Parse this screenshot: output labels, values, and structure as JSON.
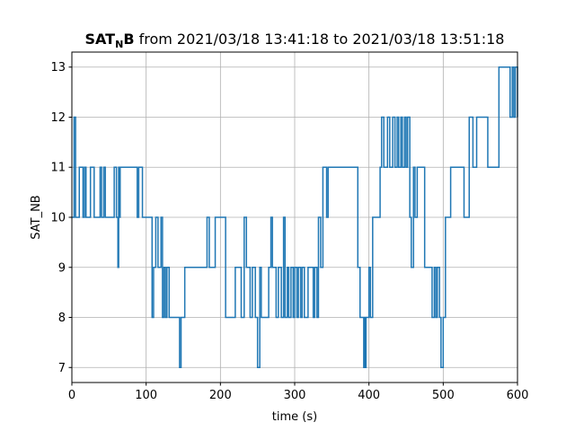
{
  "chart_data": {
    "type": "line",
    "step": true,
    "title": {
      "main": "SAT",
      "subscript": "N",
      "main_suffix": "B",
      "rest": " from 2021/03/18 13:41:18 to 2021/03/18 13:51:18"
    },
    "xlabel": "time (s)",
    "ylabel": "SAT_NB",
    "xlim": [
      0,
      600
    ],
    "ylim": [
      6.7,
      13.3
    ],
    "xticks": [
      0,
      100,
      200,
      300,
      400,
      500,
      600
    ],
    "yticks": [
      7,
      8,
      9,
      10,
      11,
      12,
      13
    ],
    "grid": true,
    "line_color": "#1f77b4",
    "series": [
      {
        "x": [
          0,
          3,
          5,
          10,
          15,
          17,
          19,
          22,
          25,
          30,
          35,
          38,
          40,
          43,
          45,
          48,
          57,
          60,
          62,
          63,
          64,
          65,
          66,
          70,
          88,
          90,
          95,
          98,
          108,
          110,
          113,
          115,
          116,
          120,
          122,
          124,
          126,
          128,
          131,
          134,
          135,
          137,
          145,
          147,
          152,
          178,
          182,
          185,
          193,
          207,
          210,
          220,
          228,
          232,
          235,
          240,
          243,
          247,
          250,
          253,
          255,
          265,
          268,
          270,
          273,
          275,
          278,
          282,
          285,
          287,
          290,
          292,
          295,
          298,
          300,
          303,
          305,
          308,
          310,
          313,
          315,
          318,
          320,
          322,
          325,
          327,
          330,
          332,
          335,
          338,
          343,
          345,
          350,
          352,
          360,
          385,
          388,
          392,
          393,
          394,
          395,
          396,
          400,
          402,
          405,
          410,
          415,
          417,
          420,
          425,
          428,
          430,
          432,
          435,
          438,
          440,
          443,
          445,
          448,
          450,
          452,
          455,
          457,
          460,
          462,
          465,
          470,
          475,
          485,
          488,
          490,
          492,
          495,
          497,
          500,
          503,
          505,
          510,
          515,
          520,
          528,
          535,
          540,
          545,
          550,
          555,
          560,
          575,
          590,
          593,
          595,
          597,
          600
        ],
        "y": [
          10,
          12,
          10,
          11,
          10,
          11,
          10,
          10,
          11,
          10,
          10,
          11,
          10,
          11,
          10,
          10,
          11,
          10,
          9,
          11,
          10,
          11,
          11,
          11,
          10,
          11,
          10,
          10,
          8,
          9,
          10,
          10,
          9,
          10,
          8,
          9,
          8,
          9,
          8,
          8,
          8,
          8,
          7,
          8,
          9,
          9,
          10,
          9,
          10,
          8,
          8,
          9,
          8,
          10,
          9,
          8,
          9,
          8,
          7,
          9,
          8,
          9,
          10,
          9,
          9,
          8,
          9,
          8,
          10,
          8,
          9,
          8,
          9,
          8,
          9,
          8,
          9,
          8,
          9,
          8,
          8,
          9,
          9,
          9,
          8,
          9,
          8,
          10,
          9,
          11,
          10,
          11,
          11,
          11,
          11,
          9,
          8,
          8,
          7,
          8,
          7,
          8,
          9,
          8,
          10,
          10,
          11,
          12,
          11,
          12,
          11,
          11,
          12,
          11,
          12,
          11,
          12,
          11,
          12,
          11,
          12,
          10,
          9,
          11,
          10,
          11,
          11,
          9,
          8,
          9,
          8,
          9,
          8,
          7,
          8,
          10,
          10,
          11,
          11,
          11,
          10,
          12,
          11,
          12,
          12,
          12,
          11,
          13,
          12,
          13,
          12,
          13,
          12
        ]
      }
    ]
  }
}
